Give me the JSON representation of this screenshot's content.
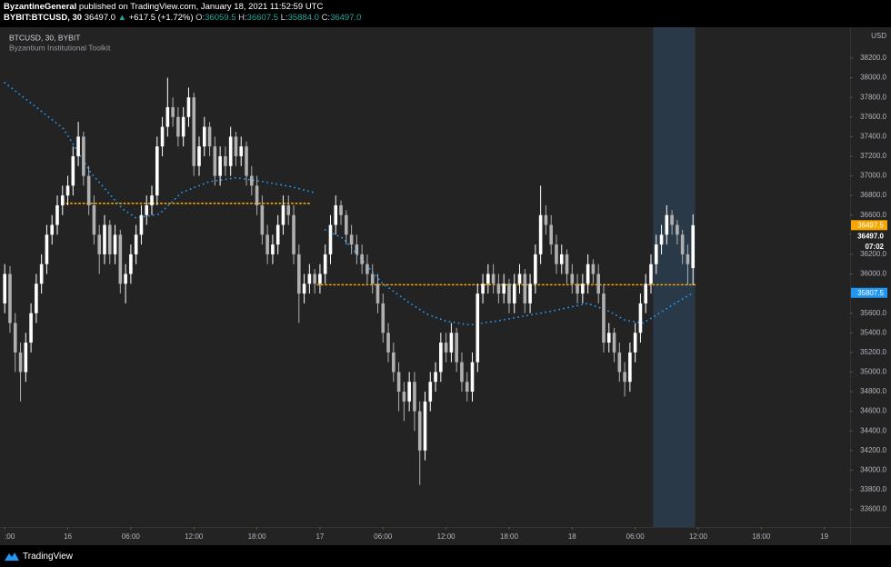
{
  "header": {
    "author": "ByzantineGeneral",
    "published": "published on TradingView.com, January 18, 2021 11:52:59 UTC",
    "symbol": "BYBIT:BTCUSD, 30",
    "arrow": "▲",
    "change": "+617.5 (+1.72%)",
    "o": "O:",
    "h": "H:",
    "l": "L:",
    "c": "C:"
  },
  "footer": {
    "brand": "TradingView"
  },
  "chart_data": {
    "type": "candlestick",
    "title": "BTCUSD, 30, BYBIT",
    "subtitle": "Byzantium Institutional Toolkit",
    "currency": "USD",
    "up_color": "#ffffff",
    "down_color": "#b0b0b0",
    "candles": [
      [
        35700,
        36100,
        35600,
        36000
      ],
      [
        36000,
        36080,
        35400,
        35500
      ],
      [
        35500,
        35600,
        35000,
        35200
      ],
      [
        35200,
        35300,
        34700,
        35000
      ],
      [
        35000,
        35400,
        34900,
        35300
      ],
      [
        35300,
        35700,
        35200,
        35600
      ],
      [
        35600,
        36000,
        35500,
        35900
      ],
      [
        35900,
        36200,
        35800,
        36100
      ],
      [
        36100,
        36500,
        36000,
        36400
      ],
      [
        36400,
        36600,
        36300,
        36500
      ],
      [
        36500,
        36800,
        36400,
        36700
      ],
      [
        36700,
        36900,
        36600,
        36800
      ],
      [
        36800,
        37000,
        36700,
        36900
      ],
      [
        36900,
        37300,
        36800,
        37200
      ],
      [
        37200,
        37550,
        37100,
        37400
      ],
      [
        37400,
        37450,
        36900,
        37000
      ],
      [
        37000,
        37100,
        36600,
        36700
      ],
      [
        36700,
        36800,
        36300,
        36400
      ],
      [
        36400,
        36500,
        36000,
        36200
      ],
      [
        36200,
        36600,
        36100,
        36500
      ],
      [
        36500,
        36550,
        36100,
        36200
      ],
      [
        36200,
        36500,
        36100,
        36400
      ],
      [
        36400,
        36450,
        35800,
        35900
      ],
      [
        35900,
        36100,
        35700,
        36000
      ],
      [
        36000,
        36300,
        35900,
        36200
      ],
      [
        36200,
        36500,
        36100,
        36400
      ],
      [
        36400,
        36700,
        36300,
        36600
      ],
      [
        36600,
        36800,
        36500,
        36700
      ],
      [
        36700,
        36900,
        36600,
        36800
      ],
      [
        36800,
        37400,
        36700,
        37300
      ],
      [
        37300,
        37600,
        37200,
        37500
      ],
      [
        37500,
        38000,
        37400,
        37700
      ],
      [
        37700,
        37800,
        37500,
        37600
      ],
      [
        37600,
        37700,
        37300,
        37400
      ],
      [
        37400,
        37700,
        37300,
        37600
      ],
      [
        37600,
        37900,
        37500,
        37800
      ],
      [
        37800,
        37850,
        37000,
        37100
      ],
      [
        37100,
        37400,
        37000,
        37300
      ],
      [
        37300,
        37600,
        37200,
        37500
      ],
      [
        37500,
        37550,
        37200,
        37300
      ],
      [
        37300,
        37400,
        36900,
        37000
      ],
      [
        37000,
        37300,
        36900,
        37200
      ],
      [
        37200,
        37300,
        37000,
        37100
      ],
      [
        37100,
        37500,
        37000,
        37400
      ],
      [
        37400,
        37450,
        37100,
        37200
      ],
      [
        37200,
        37400,
        37100,
        37300
      ],
      [
        37300,
        37350,
        36900,
        37000
      ],
      [
        37000,
        37100,
        36800,
        36900
      ],
      [
        36900,
        37000,
        36600,
        36700
      ],
      [
        36700,
        36800,
        36300,
        36400
      ],
      [
        36400,
        36500,
        36100,
        36200
      ],
      [
        36200,
        36400,
        36100,
        36300
      ],
      [
        36300,
        36600,
        36200,
        36500
      ],
      [
        36500,
        36800,
        36400,
        36700
      ],
      [
        36700,
        36800,
        36500,
        36600
      ],
      [
        36600,
        36700,
        36100,
        36200
      ],
      [
        36200,
        36300,
        35500,
        35800
      ],
      [
        35800,
        36000,
        35700,
        35900
      ],
      [
        35900,
        36100,
        35800,
        36000
      ],
      [
        36000,
        36050,
        35800,
        35900
      ],
      [
        35900,
        36100,
        35800,
        36000
      ],
      [
        36000,
        36300,
        35900,
        36200
      ],
      [
        36200,
        36600,
        36100,
        36500
      ],
      [
        36500,
        36800,
        36400,
        36700
      ],
      [
        36700,
        36750,
        36500,
        36600
      ],
      [
        36600,
        36650,
        36300,
        36400
      ],
      [
        36400,
        36500,
        36200,
        36300
      ],
      [
        36300,
        36400,
        36100,
        36200
      ],
      [
        36200,
        36300,
        36000,
        36100
      ],
      [
        36100,
        36200,
        35900,
        36000
      ],
      [
        36000,
        36100,
        35800,
        35900
      ],
      [
        35900,
        36000,
        35600,
        35700
      ],
      [
        35700,
        35800,
        35300,
        35400
      ],
      [
        35400,
        35500,
        35100,
        35200
      ],
      [
        35200,
        35300,
        34900,
        35000
      ],
      [
        35000,
        35100,
        34600,
        34800
      ],
      [
        34800,
        34900,
        34500,
        34700
      ],
      [
        34700,
        35000,
        34600,
        34900
      ],
      [
        34900,
        35000,
        34400,
        34600
      ],
      [
        34600,
        34700,
        33850,
        34200
      ],
      [
        34200,
        34800,
        34100,
        34700
      ],
      [
        34700,
        35000,
        34600,
        34900
      ],
      [
        34900,
        35100,
        34800,
        35000
      ],
      [
        35000,
        35400,
        34900,
        35300
      ],
      [
        35300,
        35400,
        35100,
        35200
      ],
      [
        35200,
        35500,
        35100,
        35400
      ],
      [
        35400,
        35450,
        35000,
        35100
      ],
      [
        35100,
        35200,
        34800,
        34900
      ],
      [
        34900,
        35000,
        34700,
        34800
      ],
      [
        34800,
        35200,
        34700,
        35100
      ],
      [
        35100,
        35900,
        35000,
        35800
      ],
      [
        35800,
        36000,
        35700,
        35900
      ],
      [
        35900,
        36100,
        35800,
        36000
      ],
      [
        36000,
        36100,
        35800,
        35900
      ],
      [
        35900,
        36000,
        35700,
        35800
      ],
      [
        35800,
        36000,
        35700,
        35900
      ],
      [
        35900,
        35950,
        35600,
        35700
      ],
      [
        35700,
        36000,
        35600,
        35900
      ],
      [
        35900,
        36100,
        35800,
        36000
      ],
      [
        36000,
        36050,
        35600,
        35700
      ],
      [
        35700,
        36000,
        35600,
        35900
      ],
      [
        35900,
        36300,
        35800,
        36200
      ],
      [
        36200,
        36900,
        36100,
        36600
      ],
      [
        36600,
        36700,
        36400,
        36500
      ],
      [
        36500,
        36600,
        36200,
        36300
      ],
      [
        36300,
        36400,
        36000,
        36100
      ],
      [
        36100,
        36300,
        36000,
        36200
      ],
      [
        36200,
        36250,
        35900,
        36000
      ],
      [
        36000,
        36100,
        35800,
        35900
      ],
      [
        35900,
        36000,
        35700,
        35800
      ],
      [
        35800,
        36000,
        35700,
        35900
      ],
      [
        35900,
        36200,
        35800,
        36100
      ],
      [
        36100,
        36150,
        35900,
        36000
      ],
      [
        36000,
        36100,
        35700,
        35800
      ],
      [
        35800,
        35900,
        35200,
        35300
      ],
      [
        35300,
        35500,
        35200,
        35400
      ],
      [
        35400,
        35450,
        35100,
        35200
      ],
      [
        35200,
        35300,
        34900,
        35000
      ],
      [
        35000,
        35100,
        34750,
        34900
      ],
      [
        34900,
        35300,
        34800,
        35200
      ],
      [
        35200,
        35500,
        35100,
        35400
      ],
      [
        35400,
        35800,
        35300,
        35700
      ],
      [
        35700,
        36000,
        35600,
        35900
      ],
      [
        35900,
        36200,
        35800,
        36100
      ],
      [
        36100,
        36400,
        36000,
        36300
      ],
      [
        36300,
        36500,
        36200,
        36400
      ],
      [
        36400,
        36700,
        36300,
        36600
      ],
      [
        36600,
        36650,
        36400,
        36500
      ],
      [
        36500,
        36550,
        36300,
        36400
      ],
      [
        36400,
        36450,
        36100,
        36200
      ],
      [
        36200,
        36300,
        35890,
        36100
      ],
      [
        36059.5,
        36607.5,
        35884,
        36497
      ]
    ],
    "ohlc_labels": [
      "36059.5",
      "36607.5",
      "35884.0",
      "36497.0"
    ],
    "ma": {
      "color": "#2196f3",
      "x": [
        0,
        6,
        11.2,
        16.4,
        22.5,
        25,
        29.4,
        33.7,
        38.9,
        44,
        49.3,
        54.5,
        58.8,
        null,
        61,
        64.5,
        67.9,
        71.8,
        76.9,
        80.4,
        83.9,
        88.5,
        93.7,
        98.8,
        104,
        107.5,
        111,
        115,
        118,
        121.5,
        124,
        127,
        131
      ],
      "values": [
        37950,
        37700,
        37480,
        37030,
        36660,
        36570,
        36610,
        36830,
        36940,
        36980,
        36940,
        36890,
        36830,
        null,
        36450,
        36360,
        36150,
        35910,
        35710,
        35590,
        35520,
        35480,
        35520,
        35570,
        35620,
        35660,
        35700,
        35620,
        35530,
        35500,
        35580,
        35680,
        35807.5
      ]
    },
    "levels": [
      {
        "value": 36720,
        "from": 11,
        "to": 58.5,
        "color": "#f7a600"
      },
      {
        "value": 35890,
        "from": 59.5,
        "to": 131.5,
        "color": "#f7a600"
      }
    ],
    "highlight": {
      "from": 123.4,
      "to": 131.4,
      "color": "#2a3947"
    },
    "price_tags": [
      {
        "value": 36497.5,
        "color": "#f7a600"
      },
      {
        "value": 36497,
        "label": "36497.0"
      },
      {
        "value": 35807.5,
        "color": "#2196f3"
      }
    ],
    "countdown": "07:02",
    "xlim": [
      -0.9,
      160.9
    ],
    "ylim": [
      33420,
      38515
    ],
    "xticks": [
      {
        "value": 0,
        "label": ":00"
      },
      {
        "value": 12,
        "label": "16"
      },
      {
        "value": 24,
        "label": "06:00"
      },
      {
        "value": 36,
        "label": "12:00"
      },
      {
        "value": 48,
        "label": "18:00"
      },
      {
        "value": 60,
        "label": "17"
      },
      {
        "value": 72,
        "label": "06:00"
      },
      {
        "value": 84,
        "label": "12:00"
      },
      {
        "value": 96,
        "label": "18:00"
      },
      {
        "value": 108,
        "label": "18"
      },
      {
        "value": 120,
        "label": "06:00"
      },
      {
        "value": 132,
        "label": "12:00"
      },
      {
        "value": 144,
        "label": "18:00"
      },
      {
        "value": 156,
        "label": "19"
      }
    ],
    "yticks": [
      {
        "value": 33600,
        "label": "33600.0"
      },
      {
        "value": 33800,
        "label": "33800.0"
      },
      {
        "value": 34000,
        "label": "34000.0"
      },
      {
        "value": 34200,
        "label": "34200.0"
      },
      {
        "value": 34400,
        "label": "34400.0"
      },
      {
        "value": 34600,
        "label": "34600.0"
      },
      {
        "value": 34800,
        "label": "34800.0"
      },
      {
        "value": 35000,
        "label": "35000.0"
      },
      {
        "value": 35200,
        "label": "35200.0"
      },
      {
        "value": 35400,
        "label": "35400.0"
      },
      {
        "value": 35600,
        "label": "35600.0"
      },
      {
        "value": 35800,
        "label": "35800.0"
      },
      {
        "value": 36000,
        "label": "36000.0"
      },
      {
        "value": 36200,
        "label": "36200.0"
      },
      {
        "value": 36400,
        "label": "36400.0"
      },
      {
        "value": 36600,
        "label": "36600.0"
      },
      {
        "value": 36800,
        "label": "36800.0"
      },
      {
        "value": 37000,
        "label": "37000.0"
      },
      {
        "value": 37200,
        "label": "37200.0"
      },
      {
        "value": 37400,
        "label": "37400.0"
      },
      {
        "value": 37600,
        "label": "37600.0"
      },
      {
        "value": 37800,
        "label": "37800.0"
      },
      {
        "value": 38000,
        "label": "38000.0"
      },
      {
        "value": 38200,
        "label": "38200.0"
      }
    ],
    "grid": false
  }
}
